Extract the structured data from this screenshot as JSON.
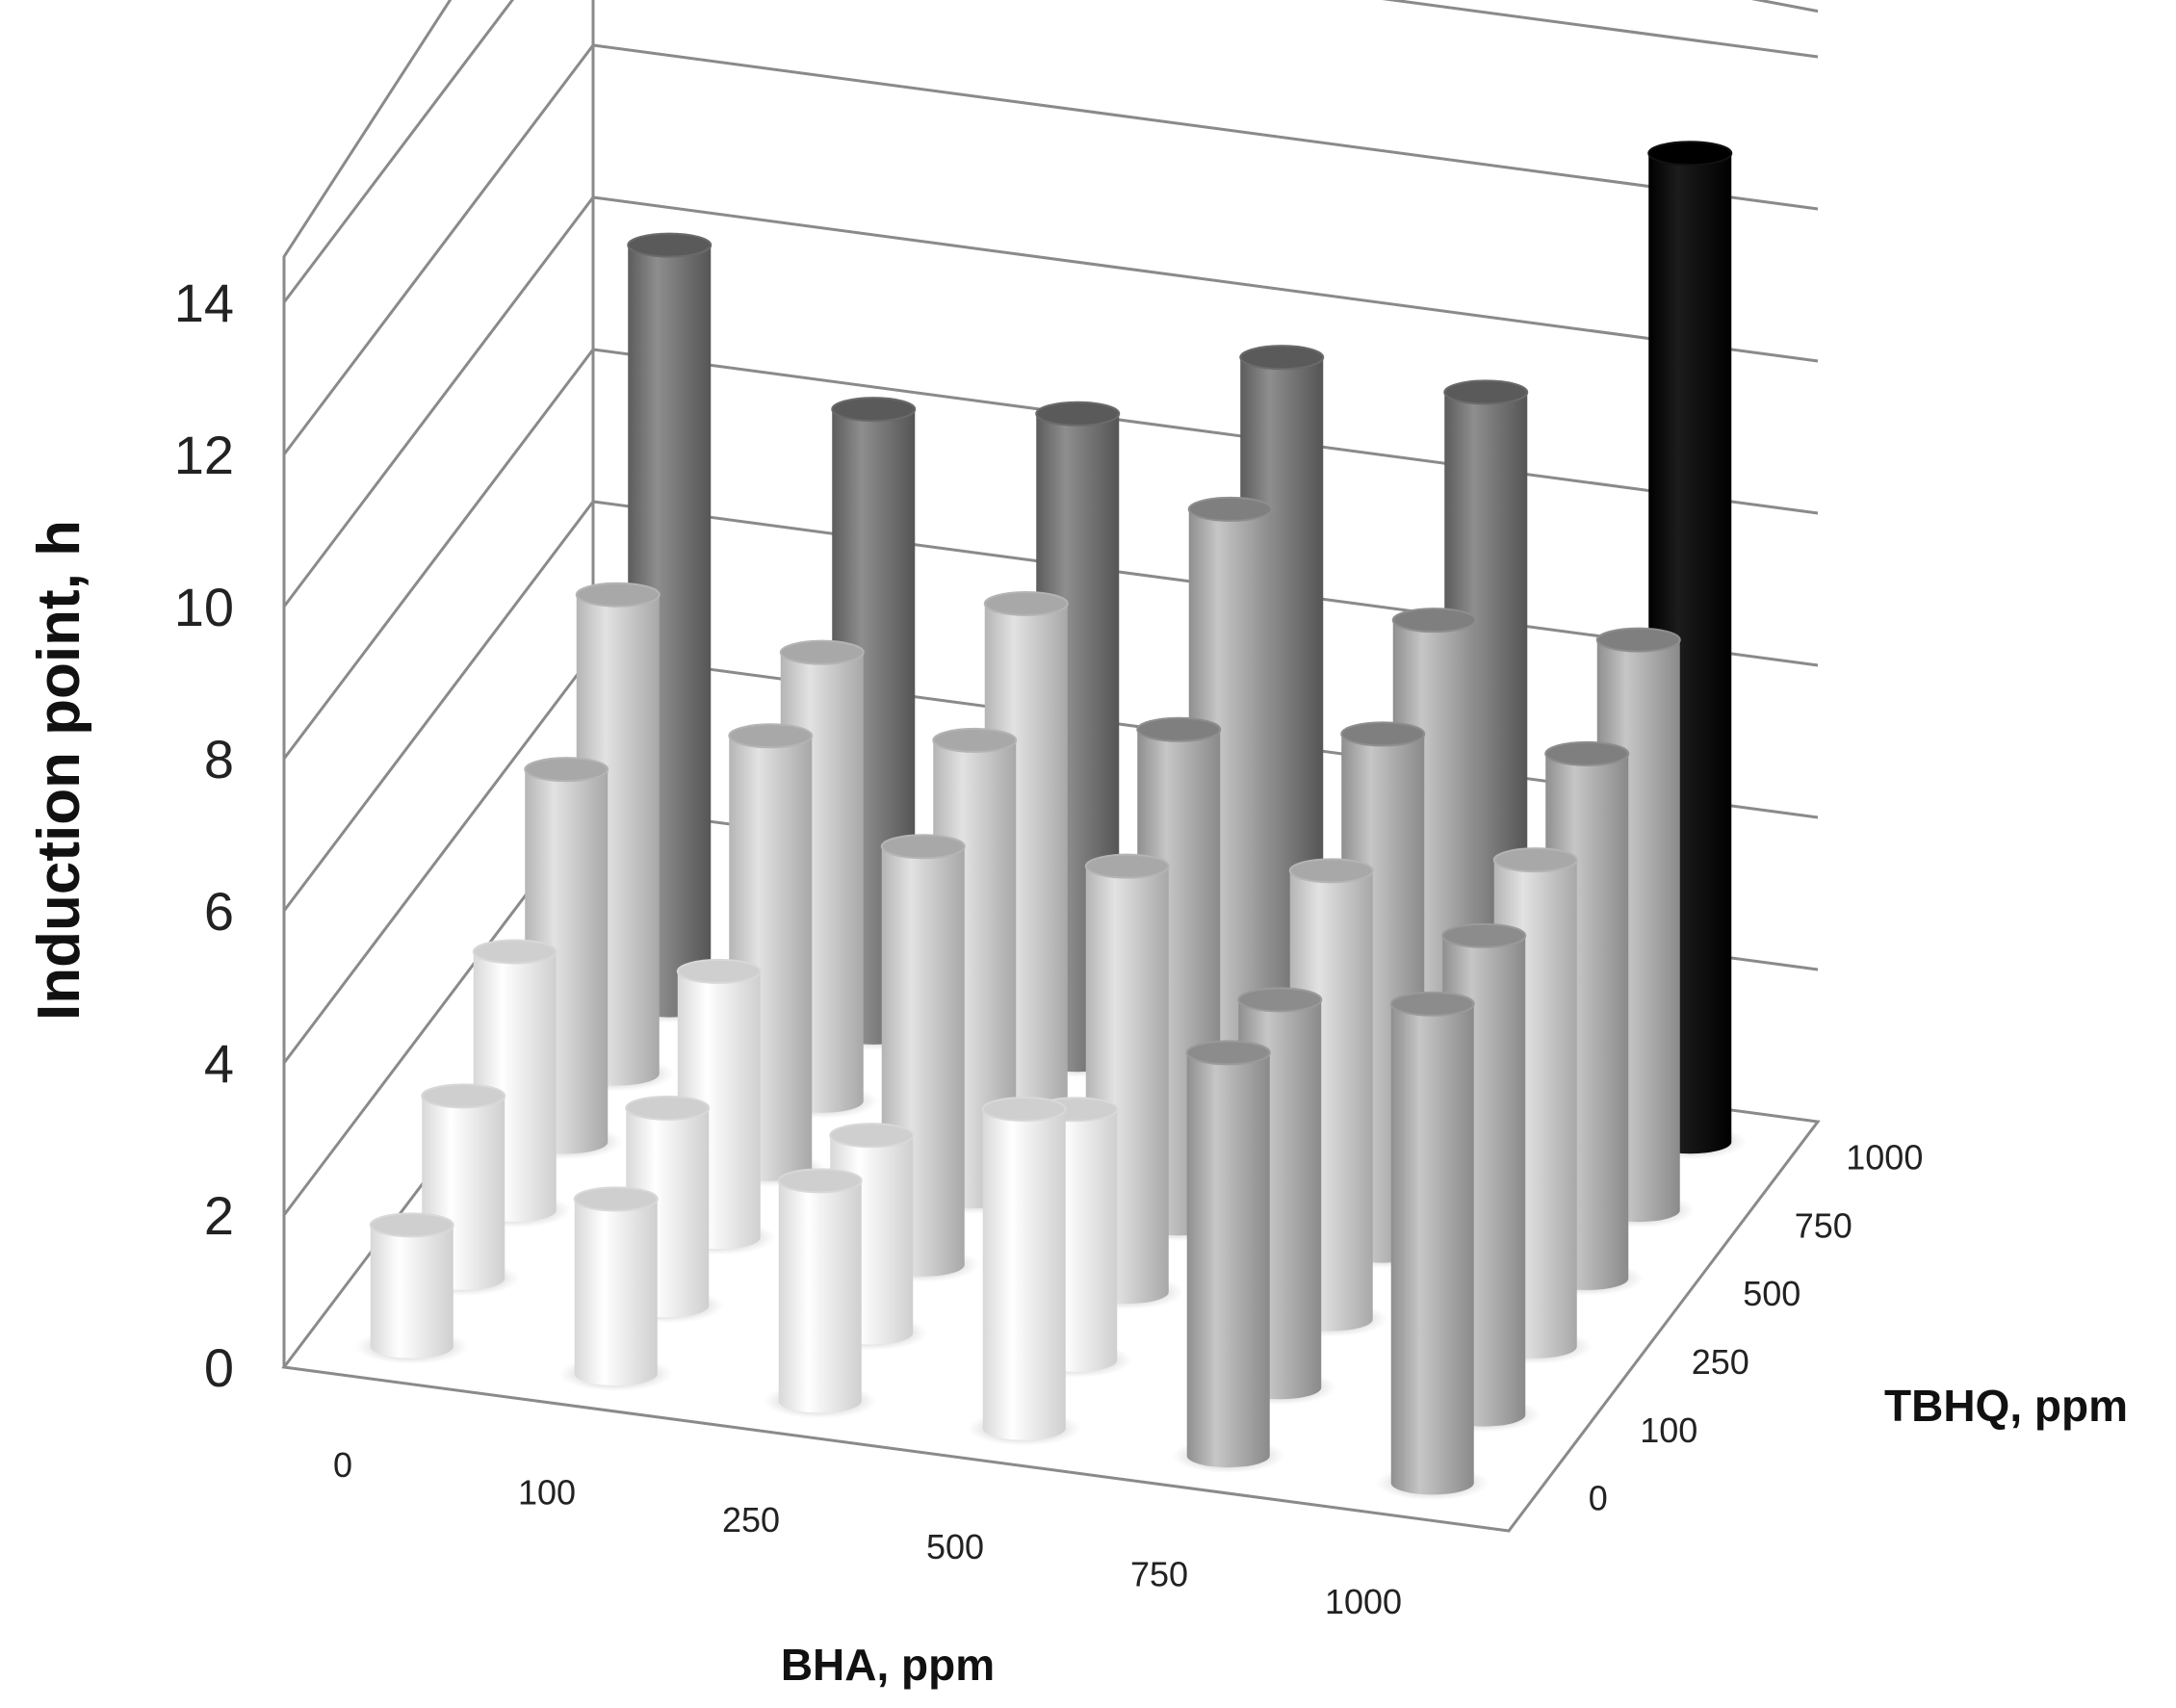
{
  "chart_data": {
    "type": "bar3d",
    "zlabel": "Induction point, h",
    "xlabel": "BHA, ppm",
    "ylabel": "TBHQ, ppm",
    "x_categories": [
      "0",
      "100",
      "250",
      "500",
      "750",
      "1000"
    ],
    "y_categories": [
      "0",
      "100",
      "250",
      "500",
      "750",
      "1000"
    ],
    "z_ticks": [
      "0",
      "2",
      "4",
      "6",
      "8",
      "10",
      "12",
      "14"
    ],
    "zlim": [
      0,
      14
    ],
    "grid": true,
    "legend": "none",
    "bars": [
      {
        "tbhq": "0",
        "bha": "0",
        "value": 1.6
      },
      {
        "tbhq": "0",
        "bha": "100",
        "value": 2.3
      },
      {
        "tbhq": "0",
        "bha": "250",
        "value": 2.9
      },
      {
        "tbhq": "0",
        "bha": "500",
        "value": 4.2
      },
      {
        "tbhq": "0",
        "bha": "750",
        "value": 5.3
      },
      {
        "tbhq": "0",
        "bha": "1000",
        "value": 6.3
      },
      {
        "tbhq": "100",
        "bha": "0",
        "value": 2.4
      },
      {
        "tbhq": "100",
        "bha": "100",
        "value": 2.6
      },
      {
        "tbhq": "100",
        "bha": "250",
        "value": 2.6
      },
      {
        "tbhq": "100",
        "bha": "500",
        "value": 3.3
      },
      {
        "tbhq": "100",
        "bha": "750",
        "value": 5.1
      },
      {
        "tbhq": "100",
        "bha": "1000",
        "value": 6.3
      },
      {
        "tbhq": "250",
        "bha": "0",
        "value": 3.4
      },
      {
        "tbhq": "250",
        "bha": "100",
        "value": 3.5
      },
      {
        "tbhq": "250",
        "bha": "250",
        "value": 5.5
      },
      {
        "tbhq": "250",
        "bha": "500",
        "value": 5.6
      },
      {
        "tbhq": "250",
        "bha": "750",
        "value": 5.9
      },
      {
        "tbhq": "250",
        "bha": "1000",
        "value": 6.4
      },
      {
        "tbhq": "500",
        "bha": "0",
        "value": 4.9
      },
      {
        "tbhq": "500",
        "bha": "100",
        "value": 5.7
      },
      {
        "tbhq": "500",
        "bha": "250",
        "value": 6.0
      },
      {
        "tbhq": "500",
        "bha": "500",
        "value": 6.5
      },
      {
        "tbhq": "500",
        "bha": "750",
        "value": 6.8
      },
      {
        "tbhq": "500",
        "bha": "1000",
        "value": 6.9
      },
      {
        "tbhq": "750",
        "bha": "0",
        "value": 6.3
      },
      {
        "tbhq": "750",
        "bha": "100",
        "value": 5.9
      },
      {
        "tbhq": "750",
        "bha": "250",
        "value": 6.9
      },
      {
        "tbhq": "750",
        "bha": "500",
        "value": 8.5
      },
      {
        "tbhq": "750",
        "bha": "750",
        "value": 7.4
      },
      {
        "tbhq": "750",
        "bha": "1000",
        "value": 7.5
      },
      {
        "tbhq": "1000",
        "bha": "0",
        "value": 10.0
      },
      {
        "tbhq": "1000",
        "bha": "100",
        "value": 8.2
      },
      {
        "tbhq": "1000",
        "bha": "250",
        "value": 8.5
      },
      {
        "tbhq": "1000",
        "bha": "500",
        "value": 9.6
      },
      {
        "tbhq": "1000",
        "bha": "750",
        "value": 9.5
      },
      {
        "tbhq": "1000",
        "bha": "1000",
        "value": 13.0
      }
    ],
    "colors": {
      "white": "#f7f7f7",
      "light_gray": "#c8c8c8",
      "medium_gray": "#a9a9a9",
      "dark_gray": "#707070",
      "black": "#050505",
      "grid": "#8a8a8a"
    }
  }
}
